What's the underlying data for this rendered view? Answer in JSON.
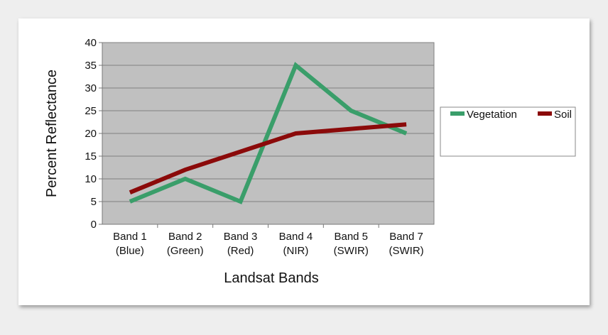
{
  "chart_data": {
    "type": "line",
    "title": "",
    "xlabel": "Landsat Bands",
    "ylabel": "Percent Reflectance",
    "categories": [
      [
        "Band 1",
        "(Blue)"
      ],
      [
        "Band 2",
        "(Green)"
      ],
      [
        "Band 3",
        "(Red)"
      ],
      [
        "Band 4",
        "(NIR)"
      ],
      [
        "Band 5",
        "(SWIR)"
      ],
      [
        "Band 7",
        "(SWIR)"
      ]
    ],
    "ylim": [
      0,
      40
    ],
    "yticks": [
      "0",
      "5",
      "10",
      "15",
      "20",
      "25",
      "30",
      "35",
      "40"
    ],
    "grid": true,
    "legend_position": "right",
    "series": [
      {
        "name": "Vegetation",
        "color": "#3a9e6a",
        "values": [
          5,
          10,
          5,
          35,
          25,
          20
        ]
      },
      {
        "name": "Soil",
        "color": "#8b0a0a",
        "values": [
          7,
          12,
          16,
          20,
          21,
          22
        ]
      }
    ]
  }
}
